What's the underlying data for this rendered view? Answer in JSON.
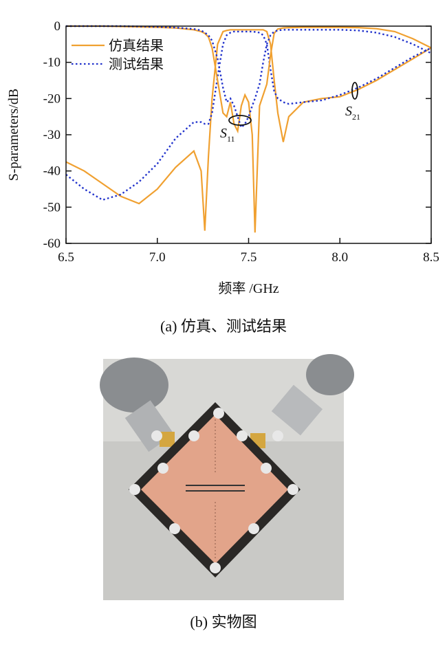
{
  "chart_data": {
    "type": "line",
    "ylabel": "S-parameters/dB",
    "xlabel": "频率 /GHz",
    "x": [
      6.5,
      6.6,
      6.7,
      6.8,
      6.9,
      7.0,
      7.1,
      7.2,
      7.24,
      7.26,
      7.28,
      7.3,
      7.33,
      7.36,
      7.38,
      7.4,
      7.42,
      7.44,
      7.46,
      7.48,
      7.5,
      7.52,
      7.535,
      7.56,
      7.58,
      7.6,
      7.62,
      7.64,
      7.66,
      7.69,
      7.72,
      7.8,
      7.9,
      8.0,
      8.1,
      8.2,
      8.3,
      8.4,
      8.5
    ],
    "series": [
      {
        "name": "仿真结果",
        "color": "#f0a030",
        "dash": false,
        "values": [
          -37.5,
          -40,
          -43.5,
          -47,
          -49,
          -45,
          -39,
          -34.5,
          -40,
          -56.5,
          -36,
          -20,
          -5,
          -1.5,
          -1.2,
          -1,
          -1,
          -1,
          -1,
          -1,
          -1,
          -1,
          -1,
          -1,
          -1,
          -1.5,
          -5,
          -15,
          -24,
          -32,
          -25,
          -21,
          -20,
          -19.5,
          -17.5,
          -15,
          -12,
          -9,
          -6
        ]
      },
      {
        "name": "测试结果",
        "color": "#2233cc",
        "dash": true,
        "values": [
          -41,
          -45,
          -48,
          -46.5,
          -43,
          -38,
          -31,
          -26.5,
          -26.5,
          -27,
          -27,
          -24,
          -14,
          -5,
          -2.5,
          -1.8,
          -1.5,
          -1.5,
          -1.5,
          -1.5,
          -1.5,
          -1.5,
          -1.6,
          -1.8,
          -2.5,
          -5,
          -12,
          -18,
          -20,
          -21,
          -21.5,
          -21,
          -20.5,
          -19,
          -17,
          -14.5,
          -11.5,
          -8.5,
          -6
        ]
      },
      {
        "color": "#f0a030",
        "dash": false,
        "values": [
          0,
          0,
          0,
          -0.1,
          -0.2,
          -0.3,
          -0.5,
          -1,
          -1.5,
          -2,
          -3,
          -6,
          -15,
          -24,
          -25,
          -21,
          -27,
          -29,
          -22,
          -19,
          -21,
          -30,
          -57,
          -22,
          -19,
          -16,
          -8,
          -2,
          -0.8,
          -0.5,
          -0.4,
          -0.3,
          -0.3,
          -0.3,
          -0.4,
          -0.7,
          -1.5,
          -3.5,
          -6
        ]
      },
      {
        "color": "#2233cc",
        "dash": true,
        "values": [
          0,
          0,
          0,
          0,
          -0.1,
          -0.2,
          -0.4,
          -0.8,
          -1.2,
          -1.8,
          -2.5,
          -4,
          -9,
          -17,
          -21,
          -20,
          -22,
          -25,
          -28,
          -27,
          -25,
          -22,
          -20,
          -16,
          -10,
          -5,
          -2.5,
          -1.5,
          -1.2,
          -1,
          -1,
          -1,
          -1,
          -1,
          -1.2,
          -1.8,
          -3,
          -5,
          -7.5
        ]
      }
    ],
    "xlim": [
      6.5,
      8.5
    ],
    "xticks": [
      6.5,
      {
        "value": 7,
        "label": "7.0"
      },
      7.5,
      {
        "value": 8,
        "label": "8.0"
      },
      8.5
    ],
    "ylim": [
      -60,
      0
    ],
    "yticks": [
      0,
      -10,
      -20,
      -30,
      -40,
      -50,
      -60
    ],
    "legend": "upper-left",
    "annotations": [
      {
        "base": "S",
        "sub": "11"
      },
      {
        "base": "S",
        "sub": "21"
      }
    ]
  },
  "captions": [
    "(a) 仿真、测试结果",
    "(b) 实物图"
  ]
}
